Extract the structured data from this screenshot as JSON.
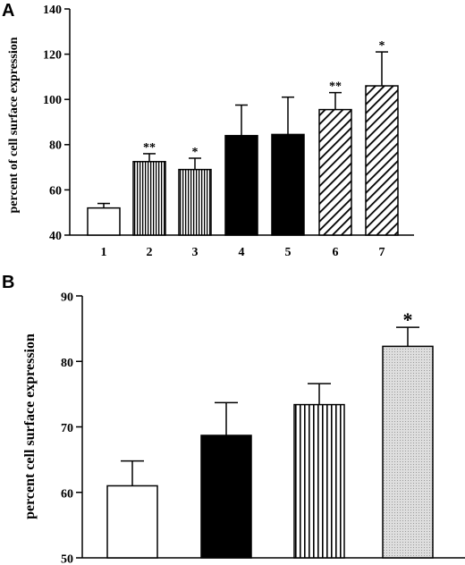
{
  "chart_data": [
    {
      "type": "bar",
      "panel_label": "A",
      "ylabel": "percent of cell surface expression",
      "ylim": [
        40,
        140
      ],
      "yticks": [
        40,
        60,
        80,
        100,
        120,
        140
      ],
      "categories": [
        "1",
        "2",
        "3",
        "4",
        "5",
        "6",
        "7"
      ],
      "values": [
        52,
        72.5,
        69,
        84,
        84.5,
        95.5,
        106
      ],
      "errors": [
        2,
        3.5,
        5,
        13.5,
        16.5,
        7.5,
        15
      ],
      "significance": [
        "",
        "**",
        "*",
        "",
        "",
        "**",
        "*"
      ],
      "fills": [
        "white",
        "vertical-stripes",
        "vertical-stripes",
        "black",
        "black",
        "diagonal-stripes",
        "diagonal-stripes"
      ],
      "grid": false
    },
    {
      "type": "bar",
      "panel_label": "B",
      "ylabel": "percent cell surface expression",
      "ylim": [
        50,
        90
      ],
      "yticks": [
        50,
        60,
        70,
        80,
        90
      ],
      "categories": [
        "",
        "",
        "",
        ""
      ],
      "values": [
        61,
        68.7,
        73.4,
        82.3
      ],
      "errors": [
        3.8,
        5,
        3.2,
        2.9
      ],
      "significance": [
        "",
        "",
        "",
        "*"
      ],
      "fills": [
        "white",
        "black",
        "vertical-stripes",
        "dotted-gray"
      ],
      "grid": false
    }
  ]
}
